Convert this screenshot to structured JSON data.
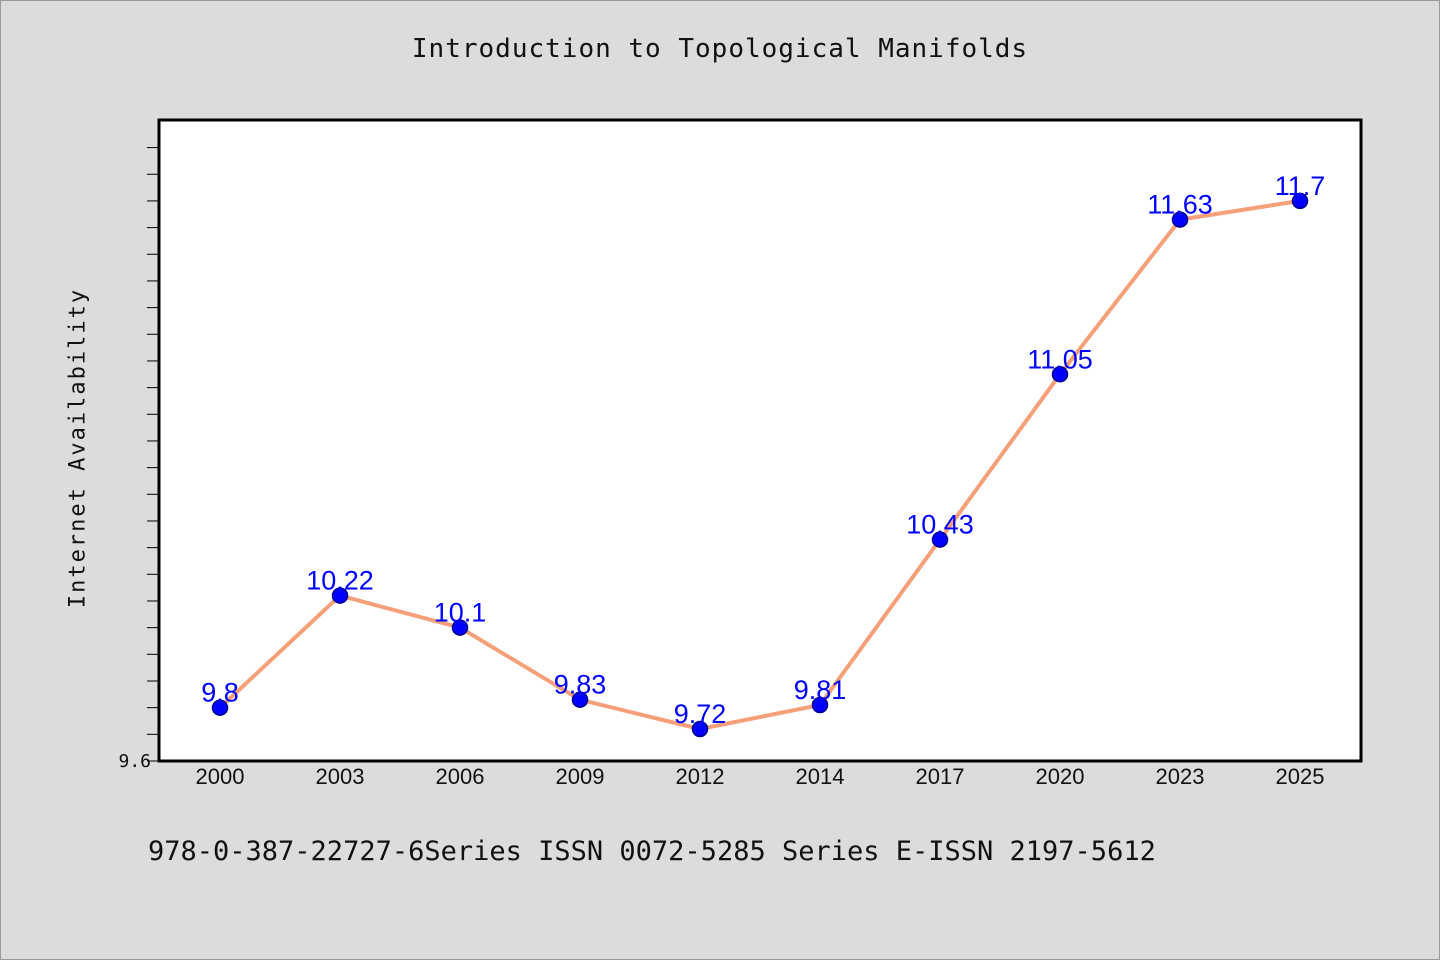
{
  "chart_data": {
    "type": "line",
    "title": "Introduction to Topological Manifolds",
    "ylabel": "Internet Availability",
    "xlabel": "",
    "categories": [
      "2000",
      "2003",
      "2006",
      "2009",
      "2012",
      "2014",
      "2017",
      "2020",
      "2023",
      "2025"
    ],
    "series": [
      {
        "values": [
          9.8,
          10.22,
          10.1,
          9.83,
          9.72,
          9.81,
          10.43,
          11.05,
          11.63,
          11.7
        ]
      }
    ],
    "data_labels": [
      "9.8",
      "10.22",
      "10.1",
      "9.83",
      "9.72",
      "9.81",
      "10.43",
      "11.05",
      "11.63",
      "11.7"
    ],
    "y_tick_labels": [
      "9.6"
    ],
    "ylim": [
      9.6,
      12.0
    ],
    "grid": false,
    "legend": "none",
    "colors": {
      "line": "#f6a07a",
      "marker": "#0000ff",
      "data_label": "#0000ff",
      "background": "#dcdcdc",
      "plot_area": "#ffffff"
    }
  },
  "footer_text": "978-0-387-22727-6Series ISSN 0072-5285 Series E-ISSN 2197-5612"
}
